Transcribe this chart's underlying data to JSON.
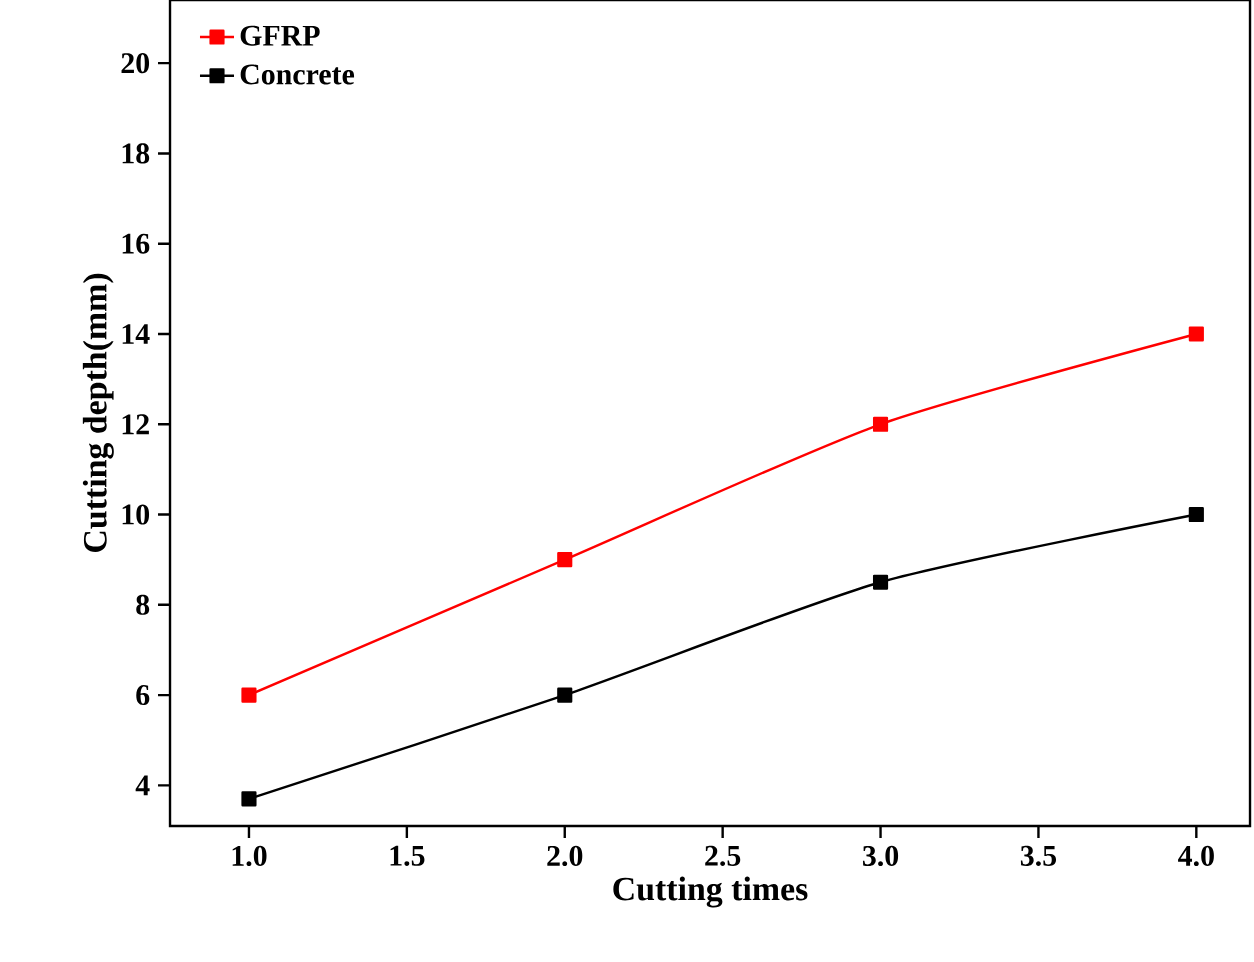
{
  "chart_data": {
    "type": "line",
    "xlabel": "Cutting times",
    "ylabel": "Cutting depth(mm)",
    "x": [
      1.0,
      2.0,
      3.0,
      4.0
    ],
    "series": [
      {
        "name": "GFRP",
        "color": "#ff0000",
        "values": [
          6,
          9,
          12,
          14
        ]
      },
      {
        "name": "Concrete",
        "color": "#000000",
        "values": [
          3.7,
          6,
          8.5,
          10
        ]
      }
    ],
    "xlim": [
      0.75,
      4.17
    ],
    "ylim": [
      3.1,
      21.4
    ],
    "xticks": [
      {
        "value": 1.0,
        "label": "1.0"
      },
      {
        "value": 1.5,
        "label": "1.5"
      },
      {
        "value": 2.0,
        "label": "2.0"
      },
      {
        "value": 2.5,
        "label": "2.5"
      },
      {
        "value": 3.0,
        "label": "3.0"
      },
      {
        "value": 3.5,
        "label": "3.5"
      },
      {
        "value": 4.0,
        "label": "4.0"
      }
    ],
    "yticks": [
      4,
      6,
      8,
      10,
      12,
      14,
      16,
      18,
      20
    ],
    "legend": "top left",
    "marker": "square",
    "line_style": "solid",
    "grid": false
  }
}
